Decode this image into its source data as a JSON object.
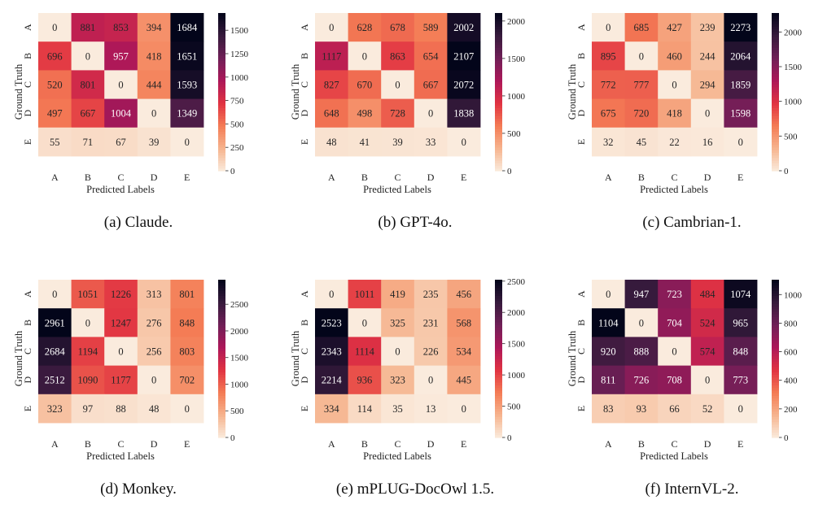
{
  "chart_data": [
    {
      "type": "heatmap",
      "caption": "(a) Claude.",
      "xlabel": "Predicted Labels",
      "ylabel": "Ground Truth",
      "x_categories": [
        "A",
        "B",
        "C",
        "D",
        "E"
      ],
      "y_categories": [
        "A",
        "B",
        "C",
        "D",
        "E"
      ],
      "values": [
        [
          0,
          881,
          853,
          394,
          1684
        ],
        [
          696,
          0,
          957,
          418,
          1651
        ],
        [
          520,
          801,
          0,
          444,
          1593
        ],
        [
          497,
          667,
          1004,
          0,
          1349
        ],
        [
          55,
          71,
          67,
          39,
          0
        ]
      ],
      "colorbar_ticks": [
        0,
        250,
        500,
        750,
        1000,
        1250,
        1500
      ],
      "color_range": [
        0,
        1684
      ]
    },
    {
      "type": "heatmap",
      "caption": "(b) GPT-4o.",
      "xlabel": "Predicted Labels",
      "ylabel": "Ground Truth",
      "x_categories": [
        "A",
        "B",
        "C",
        "D",
        "E"
      ],
      "y_categories": [
        "A",
        "B",
        "C",
        "D",
        "E"
      ],
      "values": [
        [
          0,
          628,
          678,
          589,
          2002
        ],
        [
          1117,
          0,
          863,
          654,
          2107
        ],
        [
          827,
          670,
          0,
          667,
          2072
        ],
        [
          648,
          498,
          728,
          0,
          1838
        ],
        [
          48,
          41,
          39,
          33,
          0
        ]
      ],
      "colorbar_ticks": [
        0,
        500,
        1000,
        1500,
        2000
      ],
      "color_range": [
        0,
        2107
      ]
    },
    {
      "type": "heatmap",
      "caption": "(c) Cambrian-1.",
      "xlabel": "Predicted Labels",
      "ylabel": "Ground Truth",
      "x_categories": [
        "A",
        "B",
        "C",
        "D",
        "E"
      ],
      "y_categories": [
        "A",
        "B",
        "C",
        "D",
        "E"
      ],
      "values": [
        [
          0,
          685,
          427,
          239,
          2273
        ],
        [
          895,
          0,
          460,
          244,
          2064
        ],
        [
          772,
          777,
          0,
          294,
          1859
        ],
        [
          675,
          720,
          418,
          0,
          1598
        ],
        [
          32,
          45,
          22,
          16,
          0
        ]
      ],
      "colorbar_ticks": [
        0,
        500,
        1000,
        1500,
        2000
      ],
      "color_range": [
        0,
        2273
      ]
    },
    {
      "type": "heatmap",
      "caption": "(d) Monkey.",
      "xlabel": "Predicted Labels",
      "ylabel": "Ground Truth",
      "x_categories": [
        "A",
        "B",
        "C",
        "D",
        "E"
      ],
      "y_categories": [
        "A",
        "B",
        "C",
        "D",
        "E"
      ],
      "values": [
        [
          0,
          1051,
          1226,
          313,
          801
        ],
        [
          2961,
          0,
          1247,
          276,
          848
        ],
        [
          2684,
          1194,
          0,
          256,
          803
        ],
        [
          2512,
          1090,
          1177,
          0,
          702
        ],
        [
          323,
          97,
          88,
          48,
          0
        ]
      ],
      "colorbar_ticks": [
        0,
        500,
        1000,
        1500,
        2000,
        2500
      ],
      "color_range": [
        0,
        2961
      ]
    },
    {
      "type": "heatmap",
      "caption": "(e) mPLUG-DocOwl 1.5.",
      "xlabel": "Predicted Labels",
      "ylabel": "Ground Truth",
      "x_categories": [
        "A",
        "B",
        "C",
        "D",
        "E"
      ],
      "y_categories": [
        "A",
        "B",
        "C",
        "D",
        "E"
      ],
      "values": [
        [
          0,
          1011,
          419,
          235,
          456
        ],
        [
          2523,
          0,
          325,
          231,
          568
        ],
        [
          2343,
          1114,
          0,
          226,
          534
        ],
        [
          2214,
          936,
          323,
          0,
          445
        ],
        [
          334,
          114,
          35,
          13,
          0
        ]
      ],
      "colorbar_ticks": [
        0,
        500,
        1000,
        1500,
        2000,
        2500
      ],
      "color_range": [
        0,
        2523
      ]
    },
    {
      "type": "heatmap",
      "caption": "(f) InternVL-2.",
      "xlabel": "Predicted Labels",
      "ylabel": "Ground Truth",
      "x_categories": [
        "A",
        "B",
        "C",
        "D",
        "E"
      ],
      "y_categories": [
        "A",
        "B",
        "C",
        "D",
        "E"
      ],
      "values": [
        [
          0,
          947,
          723,
          484,
          1074
        ],
        [
          1104,
          0,
          704,
          524,
          965
        ],
        [
          920,
          888,
          0,
          574,
          848
        ],
        [
          811,
          726,
          708,
          0,
          773
        ],
        [
          83,
          93,
          66,
          52,
          0
        ]
      ],
      "colorbar_ticks": [
        0,
        200,
        400,
        600,
        800,
        1000
      ],
      "color_range": [
        0,
        1104
      ]
    }
  ],
  "colors": {
    "colormap": [
      "#faebdd",
      "#f6b48e",
      "#f47c55",
      "#e13342",
      "#ad1759",
      "#701f57",
      "#361a3c",
      "#03051a"
    ],
    "dark_text": "#262626",
    "light_text": "#ffffff"
  }
}
